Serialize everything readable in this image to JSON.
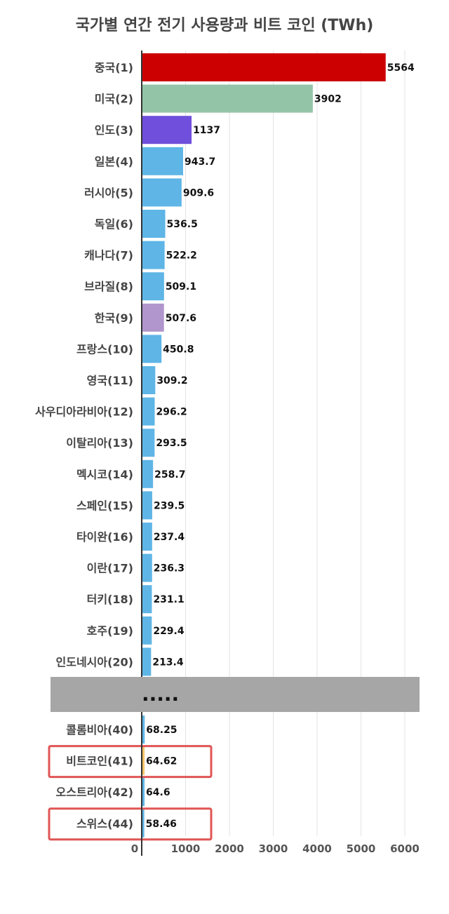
{
  "chart_data": {
    "type": "bar",
    "orientation": "horizontal",
    "title": "국가별 연간 전기 사용량과 비트 코인 (TWh)",
    "xlim": [
      0,
      6600
    ],
    "xticks": [
      0,
      1000,
      2000,
      3000,
      4000,
      5000,
      6000
    ],
    "grid": true,
    "separator_text": ".....",
    "top_categories": [
      {
        "label": "중국(1)",
        "value": 5564,
        "value_label": "5564",
        "color": "#cc0000"
      },
      {
        "label": "미국(2)",
        "value": 3902,
        "value_label": "3902",
        "color": "#93c4a8"
      },
      {
        "label": "인도(3)",
        "value": 1137,
        "value_label": "1137",
        "color": "#6f4fdc"
      },
      {
        "label": "일본(4)",
        "value": 943.7,
        "value_label": "943.7",
        "color": "#5eb5e6"
      },
      {
        "label": "러시아(5)",
        "value": 909.6,
        "value_label": "909.6",
        "color": "#5eb5e6"
      },
      {
        "label": "독일(6)",
        "value": 536.5,
        "value_label": "536.5",
        "color": "#5eb5e6"
      },
      {
        "label": "캐나다(7)",
        "value": 522.2,
        "value_label": "522.2",
        "color": "#5eb5e6"
      },
      {
        "label": "브라질(8)",
        "value": 509.1,
        "value_label": "509.1",
        "color": "#5eb5e6"
      },
      {
        "label": "한국(9)",
        "value": 507.6,
        "value_label": "507.6",
        "color": "#b096cc"
      },
      {
        "label": "프랑스(10)",
        "value": 450.8,
        "value_label": "450.8",
        "color": "#5eb5e6"
      },
      {
        "label": "영국(11)",
        "value": 309.2,
        "value_label": "309.2",
        "color": "#5eb5e6"
      },
      {
        "label": "사우디아라비아(12)",
        "value": 296.2,
        "value_label": "296.2",
        "color": "#5eb5e6"
      },
      {
        "label": "이탈리아(13)",
        "value": 293.5,
        "value_label": "293.5",
        "color": "#5eb5e6"
      },
      {
        "label": "멕시코(14)",
        "value": 258.7,
        "value_label": "258.7",
        "color": "#5eb5e6"
      },
      {
        "label": "스페인(15)",
        "value": 239.5,
        "value_label": "239.5",
        "color": "#5eb5e6"
      },
      {
        "label": "타이완(16)",
        "value": 237.4,
        "value_label": "237.4",
        "color": "#5eb5e6"
      },
      {
        "label": "이란(17)",
        "value": 236.3,
        "value_label": "236.3",
        "color": "#5eb5e6"
      },
      {
        "label": "터키(18)",
        "value": 231.1,
        "value_label": "231.1",
        "color": "#5eb5e6"
      },
      {
        "label": "호주(19)",
        "value": 229.4,
        "value_label": "229.4",
        "color": "#5eb5e6"
      },
      {
        "label": "인도네시아(20)",
        "value": 213.4,
        "value_label": "213.4",
        "color": "#5eb5e6"
      }
    ],
    "bottom_categories": [
      {
        "label": "콜롬비아(40)",
        "value": 68.25,
        "value_label": "68.25",
        "color": "#5eb5e6",
        "highlight": false
      },
      {
        "label": "비트코인(41)",
        "value": 64.62,
        "value_label": "64.62",
        "color": "#f2c26b",
        "highlight": true
      },
      {
        "label": "오스트리아(42)",
        "value": 64.6,
        "value_label": "64.6",
        "color": "#5eb5e6",
        "highlight": false
      },
      {
        "label": "스위스(44)",
        "value": 58.46,
        "value_label": "58.46",
        "color": "#5eb5e6",
        "highlight": true
      }
    ],
    "colors": {
      "gridline": "#e3e3e3",
      "axis": "#333333",
      "separator_band": "#a6a6a6",
      "highlight_box": "#e05555"
    }
  }
}
